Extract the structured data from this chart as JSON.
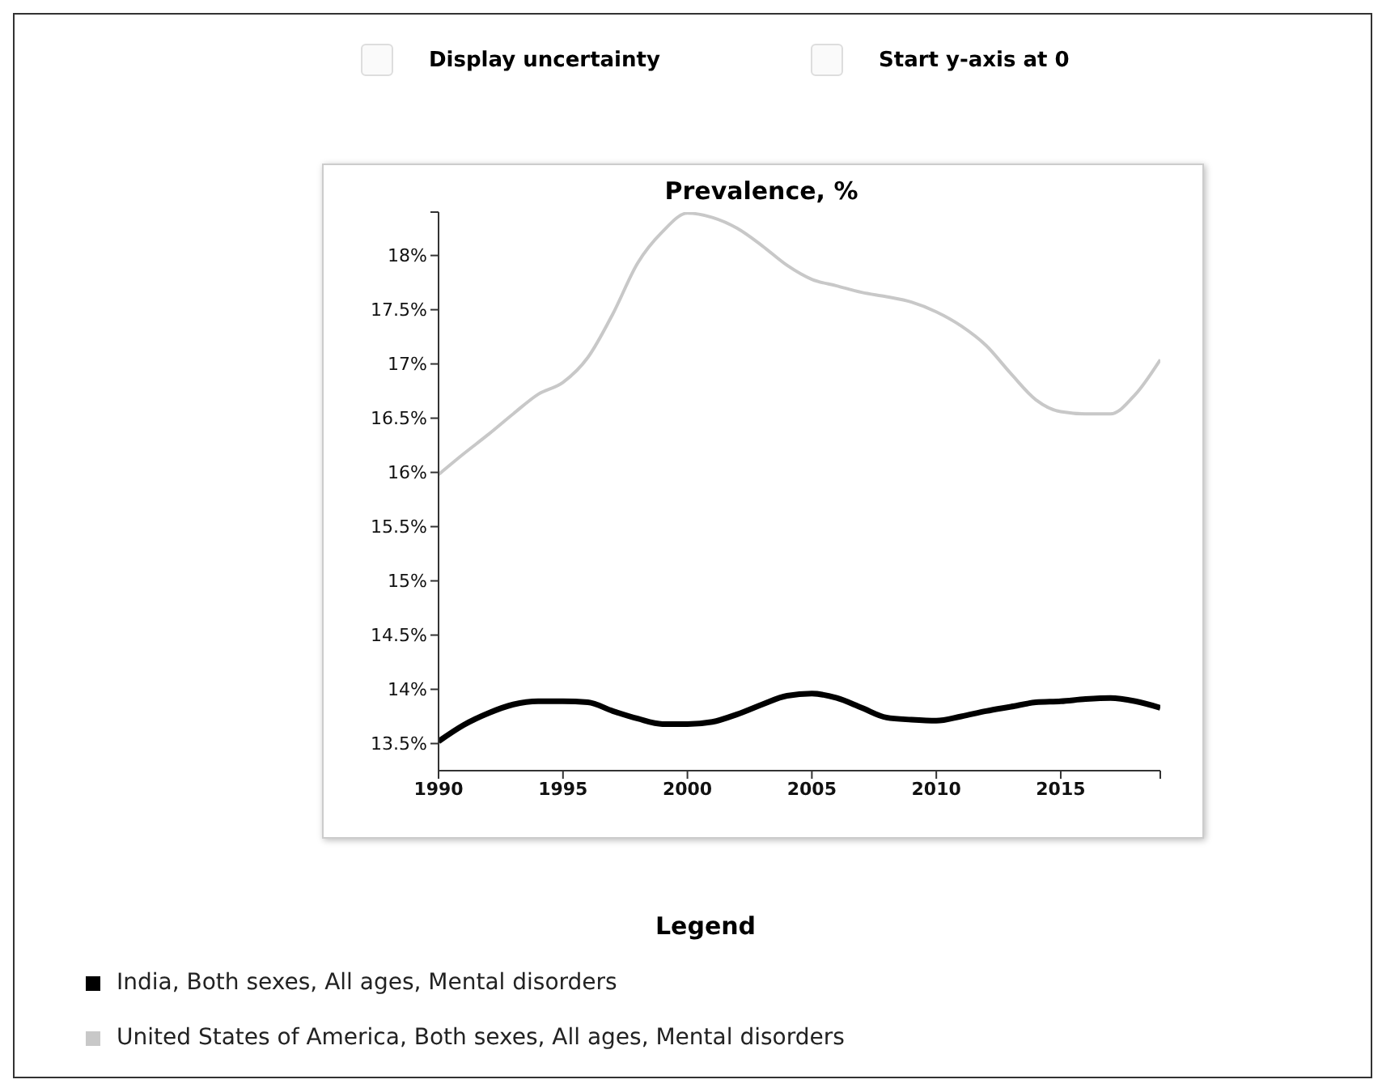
{
  "chart_data": {
    "type": "line",
    "title": "Prevalence, %",
    "legend_title": "Legend",
    "legend": "bottom",
    "grid": false,
    "marker": "none",
    "line_style": "solid",
    "annotations": [
      "Display uncertainty",
      "Start y-axis at 0"
    ],
    "x": [
      1990,
      1991,
      1992,
      1993,
      1994,
      1995,
      1996,
      1997,
      1998,
      1999,
      2000,
      2001,
      2002,
      2003,
      2004,
      2005,
      2006,
      2007,
      2008,
      2009,
      2010,
      2011,
      2012,
      2013,
      2014,
      2015,
      2016,
      2017,
      2018,
      2019
    ],
    "xlim": [
      1990,
      2019
    ],
    "xticks": [
      1990,
      1995,
      2000,
      2005,
      2010,
      2015,
      {
        "value": 2019,
        "label": null
      }
    ],
    "ylim": [
      13.25,
      18.4
    ],
    "yticks": [
      {
        "value": 13.5,
        "label": "13.5%"
      },
      {
        "value": 14,
        "label": "14%"
      },
      {
        "value": 14.5,
        "label": "14.5%"
      },
      {
        "value": 15,
        "label": "15%"
      },
      {
        "value": 15.5,
        "label": "15.5%"
      },
      {
        "value": 16,
        "label": "16%"
      },
      {
        "value": 16.5,
        "label": "16.5%"
      },
      {
        "value": 17,
        "label": "17%"
      },
      {
        "value": 17.5,
        "label": "17.5%"
      },
      {
        "value": 18,
        "label": "18%"
      },
      {
        "value": 18.4,
        "label": null
      }
    ],
    "series": [
      {
        "name": "India, Both sexes, All ages, Mental disorders",
        "color": "#000000",
        "values": [
          13.52,
          13.67,
          13.78,
          13.86,
          13.89,
          13.89,
          13.88,
          13.8,
          13.73,
          13.68,
          13.68,
          13.7,
          13.77,
          13.86,
          13.94,
          13.96,
          13.92,
          13.83,
          13.74,
          13.72,
          13.71,
          13.75,
          13.8,
          13.84,
          13.88,
          13.89,
          13.91,
          13.92,
          13.89,
          13.83
        ]
      },
      {
        "name": "United States of America, Both sexes, All ages, Mental disorders",
        "color": "#c8c8c8",
        "values": [
          15.98,
          16.17,
          16.35,
          16.54,
          16.72,
          16.83,
          17.06,
          17.46,
          17.93,
          18.22,
          18.39,
          18.35,
          18.25,
          18.09,
          17.91,
          17.78,
          17.72,
          17.66,
          17.62,
          17.57,
          17.48,
          17.35,
          17.17,
          16.91,
          16.67,
          16.56,
          16.54,
          16.54,
          16.72,
          17.04
        ]
      }
    ]
  }
}
